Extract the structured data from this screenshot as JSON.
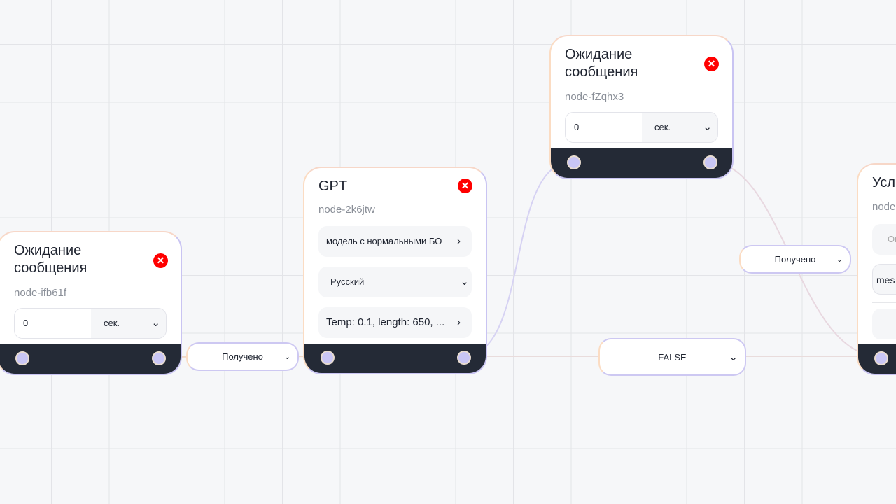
{
  "nodes": [
    {
      "title": "Ожидание сообщения",
      "id": "node-ifb61f",
      "value": "0",
      "unit": "сек."
    },
    {
      "title": "GPT",
      "id": "node-2k6jtw",
      "model": "модель с нормальными БО",
      "language": "Русский",
      "params": "Temp: 0.1, length: 650, ..."
    },
    {
      "title": "Ожидание сообщения",
      "id": "node-fZqhx3",
      "value": "0",
      "unit": "сек."
    },
    {
      "title": "Усл",
      "id": "node",
      "field1": "Ог",
      "field2": "mes"
    }
  ],
  "edge_labels": [
    "Получено",
    "FALSE",
    "Получено"
  ],
  "colors": {
    "port": "#c9c6f5",
    "footer": "#242a36",
    "close": "#ff0000",
    "edge_a": "#d6d2f3",
    "edge_b": "#f5dccb"
  }
}
